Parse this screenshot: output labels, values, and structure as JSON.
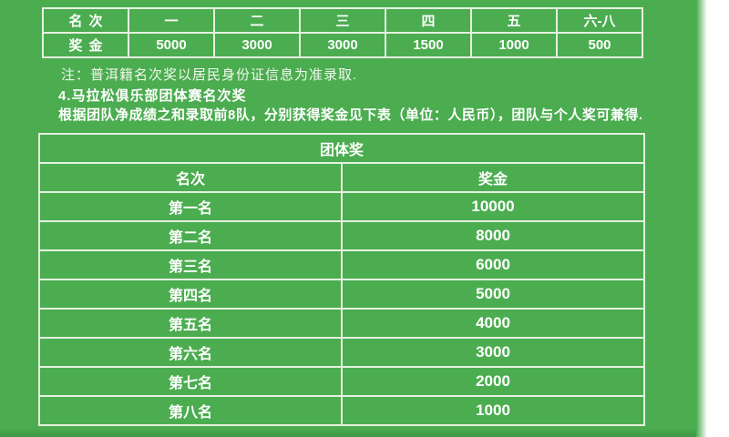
{
  "colors": {
    "background_green": "#4bad50",
    "table_border": "#e6f0e0",
    "text": "#ffffff",
    "bottom_shade": "#3e9645",
    "right_margin": "#ffffff"
  },
  "top_table": {
    "header_row": [
      "名次",
      "一",
      "二",
      "三",
      "四",
      "五",
      "六-八"
    ],
    "value_row": [
      "奖金",
      "5000",
      "3000",
      "3000",
      "1500",
      "1000",
      "500"
    ]
  },
  "note": "注：普洱籍名次奖以居民身份证信息为准录取.",
  "section": {
    "heading": "4.马拉松俱乐部团体赛名次奖",
    "description": "根据团队净成绩之和录取前8队，分别获得奖金见下表（单位：人民币），团队与个人奖可兼得."
  },
  "team_table": {
    "title": "团体奖",
    "columns": [
      "名次",
      "奖金"
    ],
    "rows": [
      {
        "rank": "第一名",
        "prize": "10000"
      },
      {
        "rank": "第二名",
        "prize": "8000"
      },
      {
        "rank": "第三名",
        "prize": "6000"
      },
      {
        "rank": "第四名",
        "prize": "5000"
      },
      {
        "rank": "第五名",
        "prize": "4000"
      },
      {
        "rank": "第六名",
        "prize": "3000"
      },
      {
        "rank": "第七名",
        "prize": "2000"
      },
      {
        "rank": "第八名",
        "prize": "1000"
      }
    ]
  }
}
